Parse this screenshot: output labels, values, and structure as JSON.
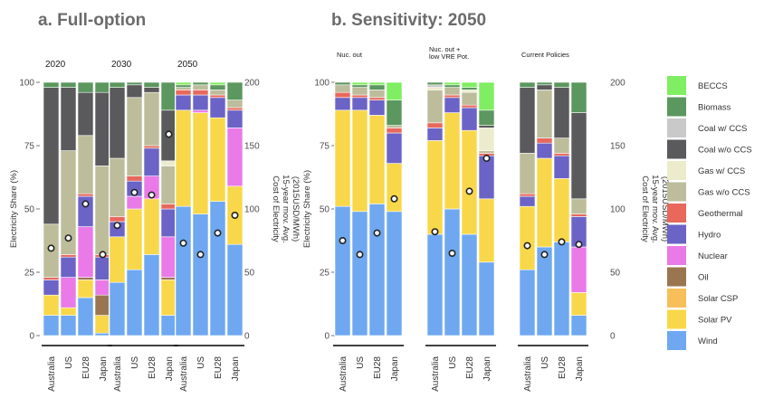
{
  "panels": {
    "a": "a. Full-option",
    "b": "b. Sensitivity: 2050"
  },
  "left_axis_label": "Electricity Share (%)",
  "right_axis_label": [
    "Cost of Electricity",
    "15-year mov. Avg.",
    "(2015USD/MWh)"
  ],
  "colors": {
    "Wind": "#6fa8f0",
    "Solar PV": "#f8d84a",
    "Solar CSP": "#f7bf5a",
    "Oil": "#9a7650",
    "Nuclear": "#ea7ae8",
    "Hydro": "#6b63c6",
    "Geothermal": "#e8685c",
    "Gas w/o CCS": "#bdbd9b",
    "Gas w/ CCS": "#ececcc",
    "Coal w/o CCS": "#5a595b",
    "Coal w/ CCS": "#c9c9c9",
    "Biomass": "#5b975e",
    "BECCS": "#7fee62"
  },
  "chart_data": [
    {
      "type": "bar",
      "stacked": true,
      "title": "a. Full-option",
      "ylabel": "Electricity Share (%)",
      "y2label": "Cost of Electricity 15-year mov. Avg. (2015USD/MWh)",
      "ylim": [
        0,
        100
      ],
      "y2lim": [
        0,
        200
      ],
      "yticks": [
        0,
        25,
        50,
        75,
        100
      ],
      "y2ticks": [
        0,
        50,
        100,
        150,
        200
      ],
      "categories": [
        "Australia",
        "US",
        "EU28",
        "Japan"
      ],
      "legend": [
        "BECCS",
        "Biomass",
        "Coal w/ CCS",
        "Coal w/o CCS",
        "Gas w/ CCS",
        "Gas w/o CCS",
        "Geothermal",
        "Hydro",
        "Nuclear",
        "Oil",
        "Solar CSP",
        "Solar PV",
        "Wind"
      ],
      "legend_position": "right",
      "facets": [
        {
          "label": "2020",
          "bars": [
            {
              "category": "Australia",
              "cost": 69,
              "shares": {
                "Wind": 8,
                "Solar PV": 8,
                "Nuclear": 0,
                "Hydro": 6,
                "Geothermal": 1,
                "Gas w/o CCS": 21,
                "Coal w/o CCS": 54,
                "Biomass": 2
              }
            },
            {
              "category": "US",
              "cost": 77,
              "shares": {
                "Wind": 8,
                "Solar PV": 3,
                "Nuclear": 12,
                "Hydro": 8,
                "Geothermal": 1,
                "Gas w/o CCS": 41,
                "Coal w/o CCS": 25,
                "Biomass": 2
              }
            },
            {
              "category": "EU28",
              "cost": 104,
              "shares": {
                "Wind": 15,
                "Solar PV": 7,
                "Oil": 1,
                "Nuclear": 20,
                "Hydro": 12,
                "Geothermal": 1,
                "Gas w/o CCS": 23,
                "Coal w/o CCS": 17,
                "Biomass": 4
              }
            },
            {
              "category": "Japan",
              "cost": 64,
              "shares": {
                "Wind": 1,
                "Solar PV": 7,
                "Oil": 8,
                "Nuclear": 6,
                "Hydro": 9,
                "Geothermal": 1,
                "Gas w/o CCS": 35,
                "Coal w/o CCS": 29,
                "Biomass": 4
              }
            }
          ]
        },
        {
          "label": "2030",
          "bars": [
            {
              "category": "Australia",
              "cost": 87,
              "shares": {
                "Wind": 21,
                "Solar PV": 18,
                "Hydro": 6,
                "Geothermal": 2,
                "Gas w/o CCS": 23,
                "Coal w/o CCS": 28,
                "Biomass": 2
              }
            },
            {
              "category": "US",
              "cost": 113,
              "shares": {
                "Wind": 26,
                "Solar PV": 24,
                "Nuclear": 5,
                "Hydro": 6,
                "Geothermal": 2,
                "Gas w/o CCS": 31,
                "Coal w/o CCS": 5,
                "Biomass": 1
              }
            },
            {
              "category": "EU28",
              "cost": 111,
              "shares": {
                "Wind": 32,
                "Solar PV": 22,
                "Nuclear": 9,
                "Hydro": 11,
                "Geothermal": 1,
                "Gas w/o CCS": 21,
                "Coal w/o CCS": 2,
                "Biomass": 2
              }
            },
            {
              "category": "Japan",
              "cost": 159,
              "shares": {
                "Wind": 8,
                "Solar PV": 14,
                "Oil": 1,
                "Nuclear": 16,
                "Hydro": 11,
                "Geothermal": 2,
                "Gas w/o CCS": 15,
                "Coal w/o CCS": 20,
                "Gas w/ CCS": 2,
                "Biomass": 11
              }
            }
          ]
        },
        {
          "label": "2050",
          "bars": [
            {
              "category": "Australia",
              "cost": 73,
              "shares": {
                "Wind": 51,
                "Solar PV": 38,
                "Hydro": 6,
                "Geothermal": 2,
                "Gas w/o CCS": 1,
                "Biomass": 1,
                "BECCS": 1
              }
            },
            {
              "category": "US",
              "cost": 64,
              "shares": {
                "Wind": 48,
                "Solar PV": 40,
                "Nuclear": 1,
                "Hydro": 6,
                "Geothermal": 2,
                "Gas w/o CCS": 2,
                "Biomass": 1
              }
            },
            {
              "category": "EU28",
              "cost": 81,
              "shares": {
                "Wind": 53,
                "Solar PV": 33,
                "Hydro": 8,
                "Geothermal": 1,
                "Gas w/o CCS": 2,
                "Biomass": 2,
                "BECCS": 1
              }
            },
            {
              "category": "Japan",
              "cost": 95,
              "shares": {
                "Wind": 36,
                "Solar PV": 23,
                "Nuclear": 23,
                "Hydro": 7,
                "Geothermal": 1,
                "Gas w/o CCS": 3,
                "Biomass": 7
              }
            }
          ]
        }
      ]
    },
    {
      "type": "bar",
      "stacked": true,
      "title": "b. Sensitivity: 2050",
      "ylabel": "Electricity Share (%)",
      "y2label": "Cost of Electricity 15-year mov. Avg. (2015USD/MWh)",
      "ylim": [
        0,
        100
      ],
      "y2lim": [
        0,
        200
      ],
      "yticks": [
        0,
        25,
        50,
        75,
        100
      ],
      "y2ticks": [
        0,
        50,
        100,
        150,
        200
      ],
      "categories": [
        "Australia",
        "US",
        "EU28",
        "Japan"
      ],
      "facets": [
        {
          "label": "Nuc. out",
          "bars": [
            {
              "category": "Australia",
              "cost": 75,
              "shares": {
                "Wind": 51,
                "Solar PV": 38,
                "Hydro": 5,
                "Geothermal": 2,
                "Gas w/o CCS": 3,
                "Biomass": 1
              }
            },
            {
              "category": "US",
              "cost": 64,
              "shares": {
                "Wind": 49,
                "Solar PV": 40,
                "Hydro": 5,
                "Geothermal": 1,
                "Gas w/o CCS": 3,
                "Biomass": 1,
                "BECCS": 1
              }
            },
            {
              "category": "EU28",
              "cost": 81,
              "shares": {
                "Wind": 52,
                "Solar PV": 35,
                "Hydro": 6,
                "Geothermal": 1,
                "Gas w/o CCS": 3,
                "Biomass": 2,
                "BECCS": 1
              }
            },
            {
              "category": "Japan",
              "cost": 108,
              "shares": {
                "Wind": 49,
                "Solar PV": 19,
                "Hydro": 12,
                "Geothermal": 2,
                "Gas w/o CCS": 1,
                "Biomass": 10,
                "BECCS": 7
              }
            }
          ]
        },
        {
          "label": "Nuc. out + low VRE Pot.",
          "bars": [
            {
              "category": "Australia",
              "cost": 82,
              "shares": {
                "Wind": 40,
                "Solar PV": 37,
                "Hydro": 5,
                "Geothermal": 2,
                "Gas w/o CCS": 13,
                "Gas w/ CCS": 1,
                "Coal w/ CCS": 1,
                "Biomass": 1
              }
            },
            {
              "category": "US",
              "cost": 65,
              "shares": {
                "Wind": 50,
                "Solar PV": 38,
                "Hydro": 6,
                "Geothermal": 1,
                "Gas w/o CCS": 3,
                "Biomass": 1,
                "BECCS": 1
              }
            },
            {
              "category": "EU28",
              "cost": 114,
              "shares": {
                "Wind": 40,
                "Solar PV": 41,
                "Hydro": 9,
                "Geothermal": 1,
                "Gas w/o CCS": 5,
                "Gas w/ CCS": 1,
                "Biomass": 1,
                "BECCS": 2
              }
            },
            {
              "category": "Japan",
              "cost": 140,
              "shares": {
                "Wind": 29,
                "Solar PV": 25,
                "Hydro": 17,
                "Geothermal": 1,
                "Gas w/o CCS": 1,
                "Gas w/ CCS": 9,
                "Coal w/o CCS": 1,
                "Biomass": 6,
                "BECCS": 11
              }
            }
          ]
        },
        {
          "label": "Current Policies",
          "bars": [
            {
              "category": "Australia",
              "cost": 71,
              "shares": {
                "Wind": 26,
                "Solar PV": 25,
                "Hydro": 4,
                "Geothermal": 1,
                "Gas w/o CCS": 16,
                "Coal w/o CCS": 26,
                "Biomass": 2
              }
            },
            {
              "category": "US",
              "cost": 64,
              "shares": {
                "Wind": 35,
                "Solar PV": 35,
                "Hydro": 6,
                "Geothermal": 2,
                "Gas w/o CCS": 19,
                "Coal w/o CCS": 2,
                "Biomass": 1
              }
            },
            {
              "category": "EU28",
              "cost": 74,
              "shares": {
                "Wind": 37,
                "Solar PV": 25,
                "Hydro": 9,
                "Geothermal": 1,
                "Gas w/o CCS": 6,
                "Coal w/o CCS": 20,
                "Biomass": 2
              }
            },
            {
              "category": "Japan",
              "cost": 72,
              "shares": {
                "Wind": 8,
                "Solar PV": 9,
                "Nuclear": 18,
                "Hydro": 12,
                "Geothermal": 1,
                "Gas w/o CCS": 6,
                "Coal w/o CCS": 34,
                "Biomass": 12
              }
            }
          ]
        }
      ]
    }
  ]
}
